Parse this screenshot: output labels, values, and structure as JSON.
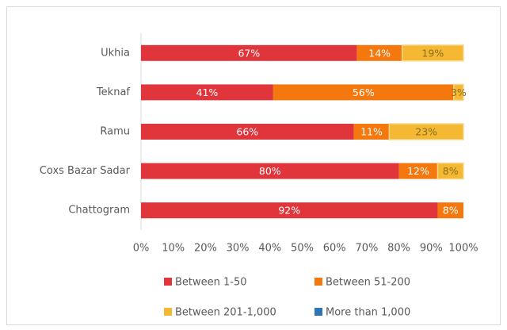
{
  "chart_data": {
    "type": "stacked-bar-horizontal",
    "categories": [
      "Ukhia",
      "Teknaf",
      "Ramu",
      "Coxs Bazar Sadar",
      "Chattogram"
    ],
    "series": [
      {
        "name": "Between 1-50",
        "color": "#e0353b",
        "values": [
          67,
          41,
          66,
          80,
          92
        ],
        "value_labels": [
          "67%",
          "41%",
          "66%",
          "80%",
          "92%"
        ]
      },
      {
        "name": "Between 51-200",
        "color": "#f5780f",
        "values": [
          14,
          56,
          11,
          12,
          8
        ],
        "value_labels": [
          "14%",
          "56%",
          "11%",
          "12%",
          "8%"
        ]
      },
      {
        "name": "Between 201-1,000",
        "color": "#f4b832",
        "values": [
          19,
          3,
          23,
          8,
          null
        ],
        "value_labels": [
          "19%",
          "3%",
          "23%",
          "8%",
          null
        ]
      },
      {
        "name": "More than 1,000",
        "color": "#2e75b6",
        "values": [
          null,
          null,
          null,
          null,
          null
        ]
      }
    ],
    "xlim": [
      0,
      100
    ],
    "xticks": [
      {
        "value": 0,
        "label": "0%"
      },
      {
        "value": 10,
        "label": "10%"
      },
      {
        "value": 20,
        "label": "20%"
      },
      {
        "value": 30,
        "label": "30%"
      },
      {
        "value": 40,
        "label": "40%"
      },
      {
        "value": 50,
        "label": "50%"
      },
      {
        "value": 60,
        "label": "60%"
      },
      {
        "value": 70,
        "label": "70%"
      },
      {
        "value": 80,
        "label": "80%"
      },
      {
        "value": 90,
        "label": "90%"
      },
      {
        "value": 100,
        "label": "100%"
      }
    ]
  }
}
